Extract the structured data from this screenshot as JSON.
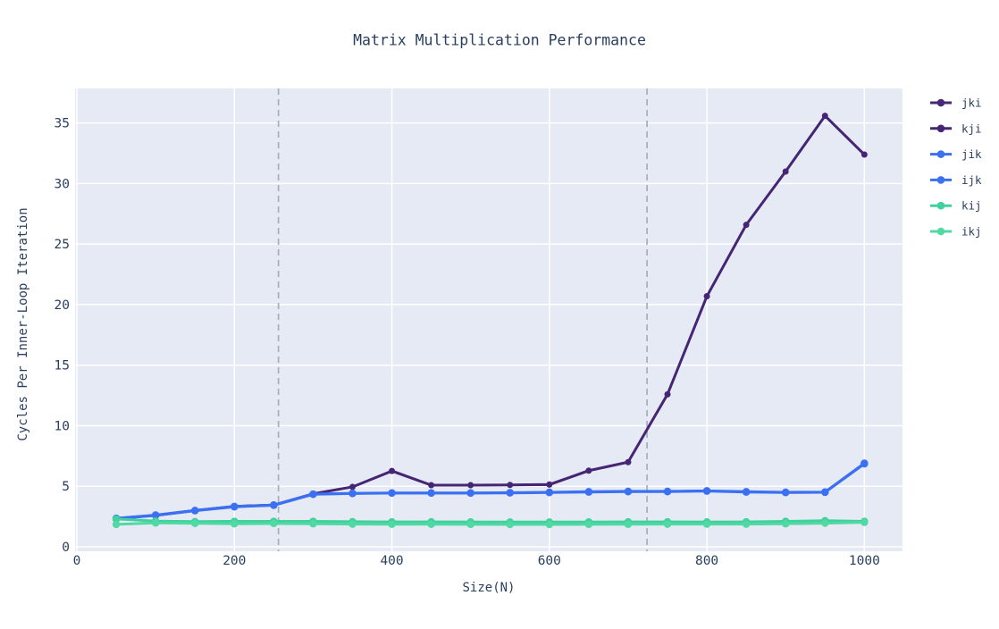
{
  "chart_data": {
    "type": "line",
    "title": "Matrix Multiplication Performance",
    "xlabel": "Size(N)",
    "ylabel": "Cycles Per Inner-Loop Iteration",
    "x": [
      50,
      100,
      150,
      200,
      250,
      300,
      350,
      400,
      450,
      500,
      550,
      600,
      650,
      700,
      750,
      800,
      850,
      900,
      950,
      1000
    ],
    "series": [
      {
        "name": "jki",
        "color": "#482878",
        "marker_r": 3.4,
        "line_w": 2.8,
        "values": [
          2.35,
          2.6,
          3.0,
          3.35,
          3.45,
          4.38,
          4.95,
          6.27,
          5.1,
          5.1,
          5.12,
          5.15,
          6.3,
          7.0,
          12.6,
          20.7,
          26.6,
          31.0,
          35.6,
          32.4
        ]
      },
      {
        "name": "kji",
        "color": "#462575",
        "marker_r": 3.4,
        "line_w": 2.8,
        "values": [
          2.33,
          2.58,
          2.99,
          3.34,
          3.44,
          4.37,
          4.94,
          6.25,
          5.08,
          5.08,
          5.1,
          5.13,
          6.28,
          6.98,
          12.58,
          20.68,
          26.58,
          30.98,
          35.58,
          32.38
        ]
      },
      {
        "name": "jik",
        "color": "#3a70f1",
        "marker_r": 4.2,
        "line_w": 3.0,
        "values": [
          2.35,
          2.62,
          3.0,
          3.33,
          3.45,
          4.35,
          4.42,
          4.45,
          4.45,
          4.45,
          4.47,
          4.5,
          4.55,
          4.58,
          4.58,
          4.62,
          4.55,
          4.5,
          4.52,
          6.9
        ]
      },
      {
        "name": "ijk",
        "color": "#3a70f1",
        "marker_r": 4.2,
        "line_w": 3.0,
        "values": [
          2.3,
          2.6,
          2.98,
          3.3,
          3.43,
          4.33,
          4.4,
          4.43,
          4.43,
          4.43,
          4.45,
          4.48,
          4.52,
          4.55,
          4.55,
          4.6,
          4.52,
          4.48,
          4.5,
          6.85
        ]
      },
      {
        "name": "kij",
        "color": "#3fd29c",
        "marker_r": 4.2,
        "line_w": 3.0,
        "values": [
          2.3,
          2.12,
          2.08,
          2.1,
          2.1,
          2.1,
          2.07,
          2.06,
          2.06,
          2.05,
          2.04,
          2.04,
          2.05,
          2.06,
          2.06,
          2.05,
          2.06,
          2.1,
          2.15,
          2.1
        ]
      },
      {
        "name": "ikj",
        "color": "#52d8a3",
        "marker_r": 4.2,
        "line_w": 3.0,
        "values": [
          1.85,
          1.97,
          1.93,
          1.9,
          1.92,
          1.9,
          1.87,
          1.86,
          1.86,
          1.85,
          1.84,
          1.84,
          1.85,
          1.86,
          1.87,
          1.87,
          1.87,
          1.9,
          1.95,
          2.02
        ]
      }
    ],
    "x_ticks": [
      0,
      200,
      400,
      600,
      800,
      1000
    ],
    "y_ticks": [
      0,
      5,
      10,
      15,
      20,
      25,
      30,
      35
    ],
    "x_range": [
      -2.3,
      1048.4
    ],
    "y_range": [
      -0.37,
      37.85
    ],
    "vlines": [
      256,
      724
    ],
    "legend_position": "right",
    "grid": true,
    "colors": {
      "plot_bg": "#e5eaf4",
      "grid": "#ffffff",
      "vline": "#a6aebc",
      "text": "#2a3f5f"
    }
  }
}
